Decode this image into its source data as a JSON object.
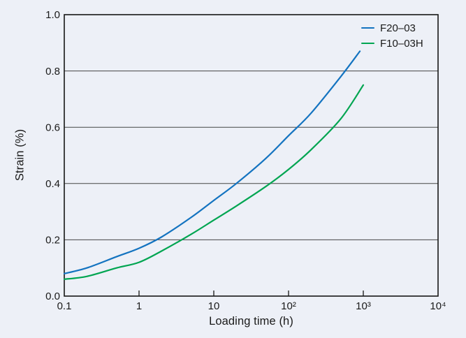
{
  "figure": {
    "background_color": "#edf0f7",
    "text_color": "#1a1a1a",
    "grid_color": "#454545",
    "border_color": "#161616"
  },
  "chart_data": {
    "type": "line",
    "title": "",
    "xlabel": "Loading time (h)",
    "ylabel": "Strain (%)",
    "x_scale": "log",
    "xlim": [
      0.1,
      10000
    ],
    "ylim": [
      0.0,
      1.0
    ],
    "x_ticks": [
      {
        "v": 0.1,
        "label": "0.1"
      },
      {
        "v": 1,
        "label": "1"
      },
      {
        "v": 10,
        "label": "10"
      },
      {
        "v": 100,
        "label": "10²"
      },
      {
        "v": 1000,
        "label": "10³"
      },
      {
        "v": 10000,
        "label": "10⁴"
      }
    ],
    "y_ticks": [
      {
        "v": 0.0,
        "label": "0.0"
      },
      {
        "v": 0.2,
        "label": "0.2"
      },
      {
        "v": 0.4,
        "label": "0.4"
      },
      {
        "v": 0.6,
        "label": "0.6"
      },
      {
        "v": 0.8,
        "label": "0.8"
      },
      {
        "v": 1.0,
        "label": "1.0"
      }
    ],
    "grid_y": [
      0.2,
      0.4,
      0.6,
      0.8
    ],
    "grid_on": true,
    "legend_position": "top-right",
    "series": [
      {
        "name": "F20–03",
        "color": "#1373c0",
        "points": [
          [
            0.1,
            0.08
          ],
          [
            0.2,
            0.1
          ],
          [
            0.5,
            0.14
          ],
          [
            1,
            0.17
          ],
          [
            2,
            0.21
          ],
          [
            5,
            0.28
          ],
          [
            10,
            0.34
          ],
          [
            20,
            0.4
          ],
          [
            50,
            0.49
          ],
          [
            100,
            0.57
          ],
          [
            200,
            0.65
          ],
          [
            500,
            0.78
          ],
          [
            900,
            0.87
          ]
        ]
      },
      {
        "name": "F10–03H",
        "color": "#00a551",
        "points": [
          [
            0.1,
            0.06
          ],
          [
            0.2,
            0.07
          ],
          [
            0.5,
            0.1
          ],
          [
            1,
            0.12
          ],
          [
            2,
            0.16
          ],
          [
            5,
            0.22
          ],
          [
            10,
            0.27
          ],
          [
            20,
            0.32
          ],
          [
            50,
            0.39
          ],
          [
            100,
            0.45
          ],
          [
            200,
            0.52
          ],
          [
            500,
            0.63
          ],
          [
            1000,
            0.75
          ]
        ]
      }
    ]
  }
}
